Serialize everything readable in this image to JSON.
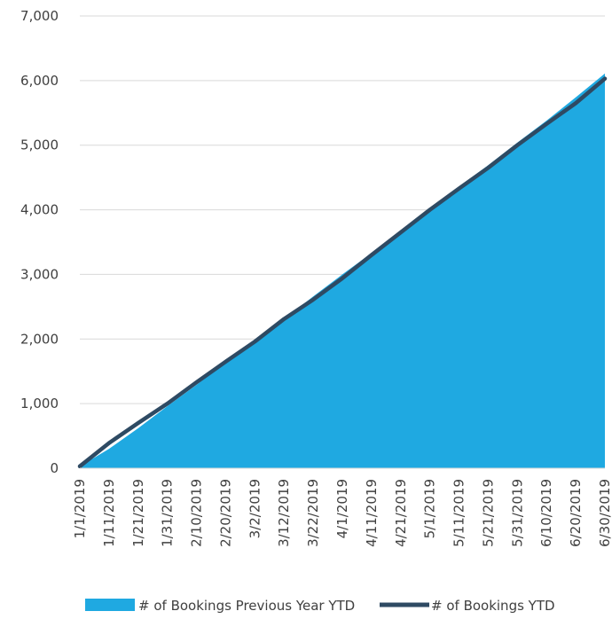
{
  "chart_data": {
    "type": "area",
    "x_ticks": [
      "1/1/2019",
      "1/11/2019",
      "1/21/2019",
      "1/31/2019",
      "2/10/2019",
      "2/20/2019",
      "3/2/2019",
      "3/12/2019",
      "3/22/2019",
      "4/1/2019",
      "4/11/2019",
      "4/21/2019",
      "5/1/2019",
      "5/11/2019",
      "5/21/2019",
      "5/31/2019",
      "6/10/2019",
      "6/20/2019",
      "6/30/2019"
    ],
    "y_ticks": [
      "0",
      "1,000",
      "2,000",
      "3,000",
      "4,000",
      "5,000",
      "6,000",
      "7,000"
    ],
    "ylim": [
      0,
      7000
    ],
    "grid": true,
    "legend_position": "bottom",
    "series": [
      {
        "name": "# of Bookings Previous Year YTD",
        "kind": "area",
        "color": "#1FA9E1",
        "x": [
          "1/1/2019",
          "1/11/2019",
          "1/21/2019",
          "1/31/2019",
          "2/10/2019",
          "2/20/2019",
          "3/2/2019",
          "3/12/2019",
          "3/22/2019",
          "4/1/2019",
          "4/11/2019",
          "4/21/2019",
          "5/1/2019",
          "5/11/2019",
          "5/21/2019",
          "5/31/2019",
          "6/10/2019",
          "6/20/2019",
          "6/30/2019"
        ],
        "values": [
          30,
          300,
          620,
          960,
          1290,
          1640,
          1970,
          2310,
          2660,
          3000,
          3330,
          3680,
          4010,
          4360,
          4690,
          5040,
          5380,
          5740,
          6110
        ]
      },
      {
        "name": "# of Bookings YTD",
        "kind": "line",
        "color": "#2E4A63",
        "x": [
          "1/1/2019",
          "1/11/2019",
          "1/21/2019",
          "1/31/2019",
          "2/10/2019",
          "2/20/2019",
          "3/2/2019",
          "3/12/2019",
          "3/22/2019",
          "4/1/2019",
          "4/11/2019",
          "4/21/2019",
          "5/1/2019",
          "5/11/2019",
          "5/21/2019",
          "5/31/2019",
          "6/10/2019",
          "6/20/2019",
          "6/30/2019"
        ],
        "values": [
          30,
          390,
          700,
          1000,
          1330,
          1650,
          1960,
          2310,
          2610,
          2940,
          3300,
          3650,
          4000,
          4330,
          4650,
          5000,
          5330,
          5650,
          6030
        ]
      }
    ]
  }
}
